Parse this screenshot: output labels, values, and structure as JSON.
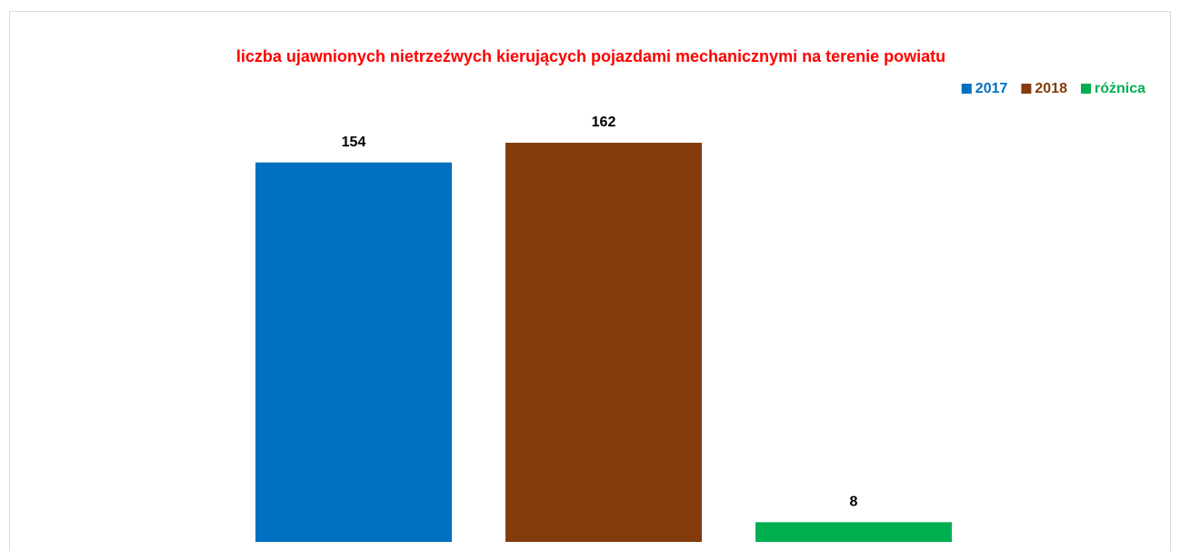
{
  "chart_data": {
    "type": "bar",
    "title": "liczba ujawnionych nietrzeźwych kierujących pojazdami mechanicznymi na terenie powiatu",
    "categories": [
      null
    ],
    "series": [
      {
        "name": "2017",
        "color": "#0070c0",
        "values": [
          154
        ]
      },
      {
        "name": "2018",
        "color": "#843c0c",
        "values": [
          162
        ]
      },
      {
        "name": "różnica",
        "color": "#00b050",
        "values": [
          8
        ]
      }
    ],
    "legend": "top-right"
  }
}
